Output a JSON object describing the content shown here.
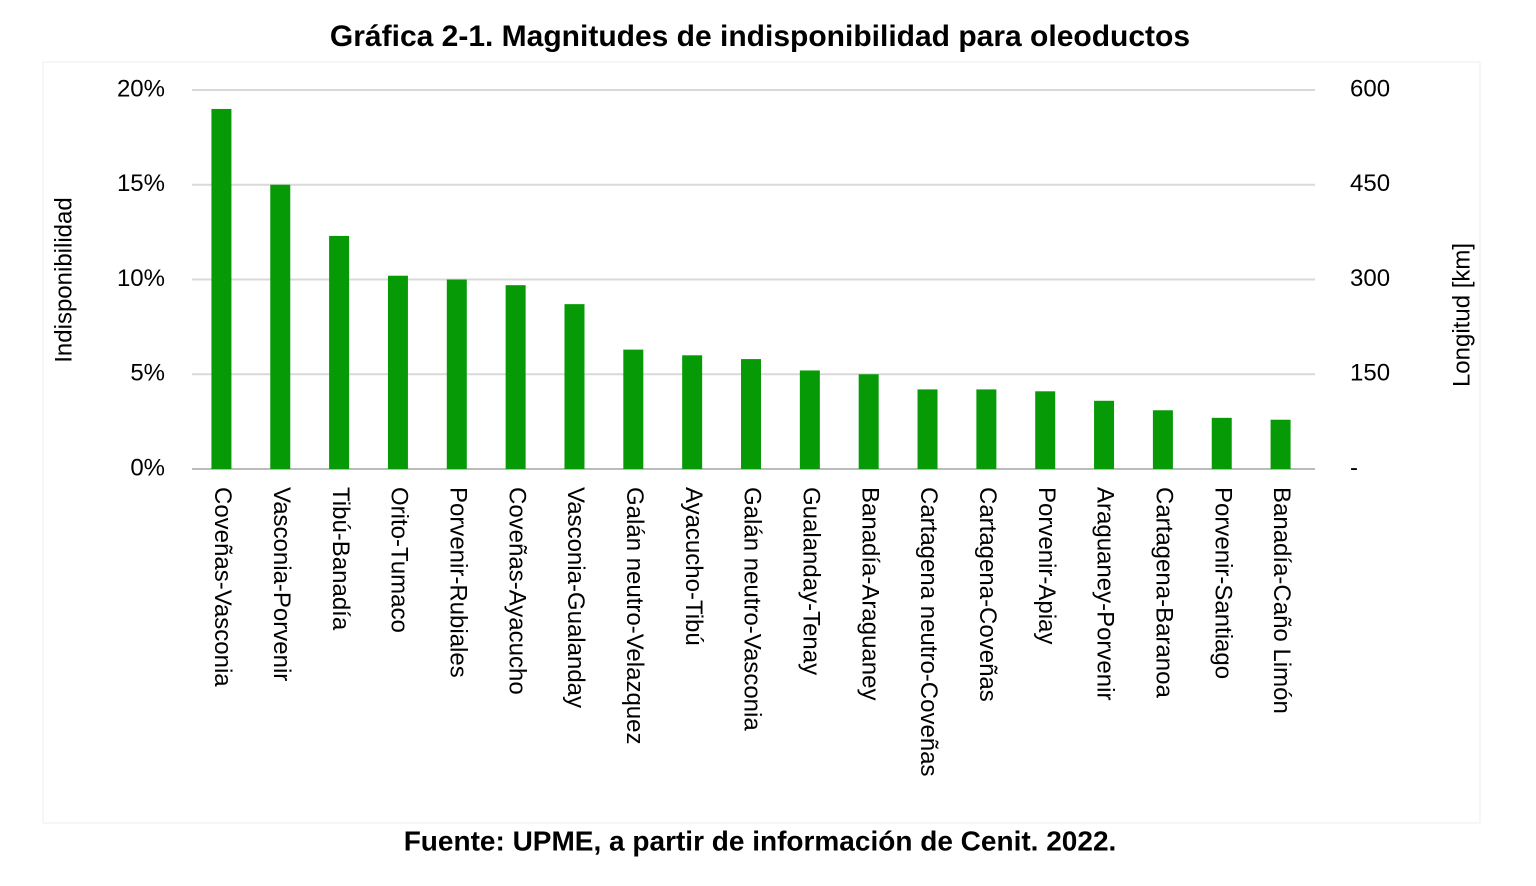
{
  "chart_data": {
    "type": "bar",
    "title": "Gráfica 2-1. Magnitudes de indisponibilidad para oleoductos",
    "source": "Fuente: UPME, a partir de información de Cenit. 2022.",
    "y_label": "Indisponibilidad",
    "y2_label": "Longitud [km]",
    "categories": [
      "Coveñas-Vasconia",
      "Vasconia-Porvenir",
      "Tibú-Banadía",
      "Orito-Tumaco",
      "Porvenir-Rubiales",
      "Coveñas-Ayacucho",
      "Vasconia-Gualanday",
      "Galán neutro-Velazquez",
      "Ayacucho-Tibú",
      "Galán neutro-Vasconia",
      "Gualanday-Tenay",
      "Banadía-Araguaney",
      "Cartagena neutro-Coveñas",
      "Cartagena-Coveñas",
      "Porvenir-Apiay",
      "Araguaney-Porvenir",
      "Cartagena-Baranoa",
      "Porvenir-Santiago",
      "Banadía-Caño Limón"
    ],
    "values": [
      19.0,
      15.0,
      12.3,
      10.2,
      10.0,
      9.7,
      8.7,
      6.3,
      6.0,
      5.8,
      5.2,
      5.0,
      4.2,
      4.2,
      4.1,
      3.6,
      3.1,
      2.7,
      2.6
    ],
    "color": "#079a07",
    "ylim": [
      0,
      20
    ],
    "yticks": [
      {
        "value": 0,
        "label": "0%"
      },
      {
        "value": 5,
        "label": "5%"
      },
      {
        "value": 10,
        "label": "10%"
      },
      {
        "value": 15,
        "label": "15%"
      },
      {
        "value": 20,
        "label": "20%"
      }
    ],
    "y2lim": [
      0,
      600
    ],
    "y2ticks": [
      {
        "value": 0,
        "label": "-"
      },
      150,
      300,
      450,
      600
    ],
    "grid": true
  }
}
